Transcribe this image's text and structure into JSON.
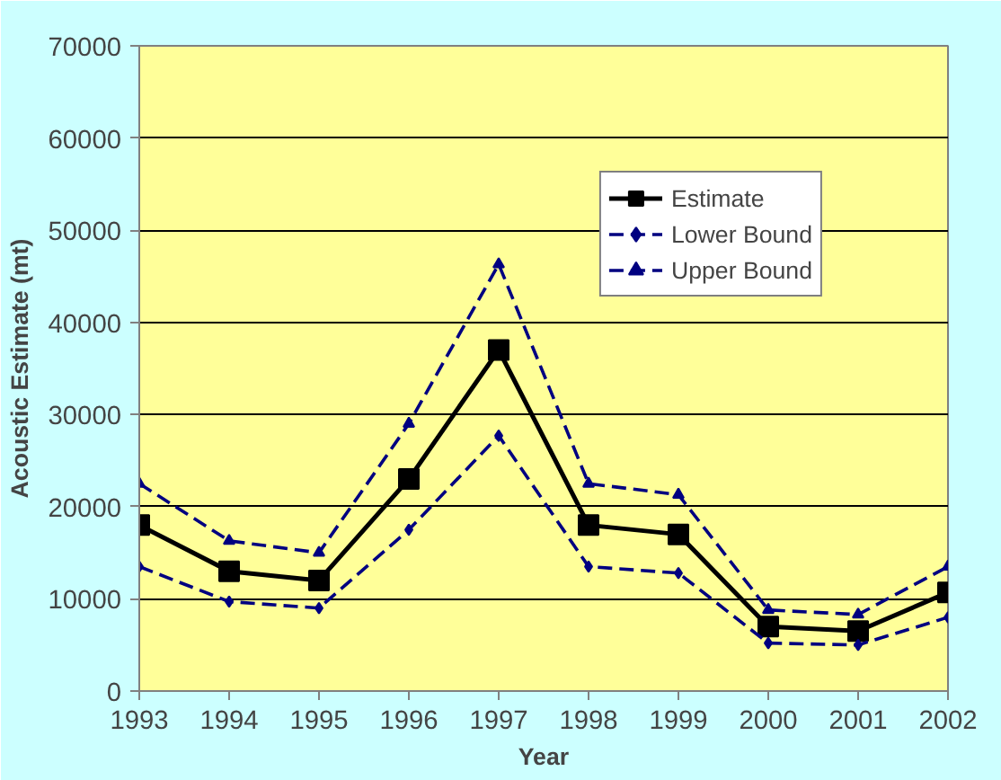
{
  "chart_data": {
    "type": "line",
    "xlabel": "Year",
    "ylabel": "Acoustic Estimate (mt)",
    "x": [
      1993,
      1994,
      1995,
      1996,
      1997,
      1998,
      1999,
      2000,
      2001,
      2002
    ],
    "series": [
      {
        "name": "Estimate",
        "color": "#000000",
        "marker": "square",
        "line_style": "solid",
        "values": [
          18000,
          13000,
          12000,
          23000,
          37000,
          18000,
          17000,
          7000,
          6500,
          10700
        ]
      },
      {
        "name": "Lower Bound",
        "color": "#000080",
        "marker": "diamond",
        "line_style": "dashed",
        "values": [
          13500,
          9700,
          9000,
          17500,
          27700,
          13500,
          12800,
          5200,
          5000,
          8000
        ]
      },
      {
        "name": "Upper Bound",
        "color": "#000080",
        "marker": "triangle",
        "line_style": "dashed",
        "values": [
          22500,
          16300,
          15000,
          29000,
          46300,
          22500,
          21300,
          8800,
          8300,
          13500
        ]
      }
    ],
    "xlim": [
      1993,
      2002
    ],
    "xticks": [
      1993,
      1994,
      1995,
      1996,
      1997,
      1998,
      1999,
      2000,
      2001,
      2002
    ],
    "ylim": [
      0,
      70000
    ],
    "yticks": [
      0,
      10000,
      20000,
      30000,
      40000,
      50000,
      60000,
      70000
    ],
    "grid": "y",
    "legend": "top right"
  }
}
